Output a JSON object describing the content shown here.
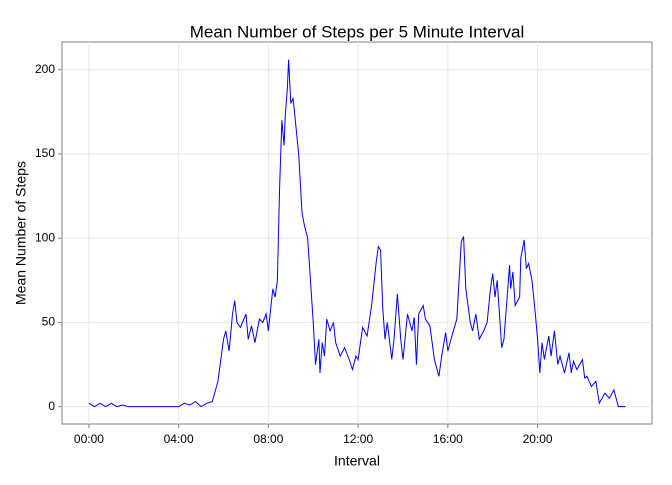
{
  "chart_data": {
    "type": "line",
    "title": "Mean Number of Steps per 5 Minute Interval",
    "x_label": "Interval",
    "y_label": "Mean Number of Steps",
    "x": [
      0,
      0.25,
      0.5,
      0.75,
      1,
      1.25,
      1.5,
      1.75,
      2,
      2.5,
      3,
      3.5,
      4,
      4.25,
      4.5,
      4.75,
      5,
      5.25,
      5.5,
      5.75,
      6.0,
      6.1,
      6.25,
      6.4,
      6.5,
      6.6,
      6.75,
      7.0,
      7.1,
      7.25,
      7.4,
      7.5,
      7.6,
      7.75,
      7.9,
      8.0,
      8.1,
      8.2,
      8.3,
      8.4,
      8.5,
      8.6,
      8.7,
      8.75,
      8.85,
      8.9,
      9.0,
      9.1,
      9.2,
      9.35,
      9.5,
      9.6,
      9.75,
      9.85,
      10.0,
      10.1,
      10.25,
      10.3,
      10.4,
      10.5,
      10.6,
      10.75,
      10.9,
      11.0,
      11.2,
      11.4,
      11.6,
      11.75,
      11.9,
      12.0,
      12.2,
      12.4,
      12.6,
      12.8,
      12.9,
      13.0,
      13.1,
      13.2,
      13.3,
      13.5,
      13.6,
      13.75,
      13.9,
      14.0,
      14.2,
      14.4,
      14.5,
      14.6,
      14.7,
      14.9,
      15.0,
      15.2,
      15.4,
      15.6,
      15.75,
      15.9,
      16.0,
      16.2,
      16.4,
      16.6,
      16.7,
      16.8,
      16.9,
      17.0,
      17.1,
      17.25,
      17.4,
      17.6,
      17.75,
      17.9,
      18.0,
      18.1,
      18.2,
      18.3,
      18.4,
      18.5,
      18.75,
      18.8,
      18.9,
      19.0,
      19.2,
      19.25,
      19.4,
      19.5,
      19.6,
      19.75,
      19.9,
      20.0,
      20.1,
      20.2,
      20.3,
      20.5,
      20.6,
      20.75,
      20.9,
      21.0,
      21.2,
      21.4,
      21.5,
      21.6,
      21.75,
      22.0,
      22.1,
      22.2,
      22.4,
      22.6,
      22.75,
      23.0,
      23.2,
      23.4,
      23.6,
      23.92
    ],
    "series": [
      {
        "name": "Mean Number of Steps",
        "color": "#0000ff",
        "values": [
          2,
          0,
          2,
          0,
          2,
          0,
          1,
          0,
          0,
          0,
          0,
          0,
          0,
          2,
          1,
          3,
          0,
          2,
          3,
          15,
          40,
          45,
          33,
          55,
          63,
          50,
          47,
          55,
          40,
          48,
          38,
          45,
          52,
          50,
          55,
          45,
          58,
          70,
          65,
          75,
          130,
          170,
          155,
          172,
          190,
          206,
          180,
          183,
          170,
          150,
          115,
          108,
          100,
          80,
          50,
          25,
          40,
          20,
          38,
          30,
          52,
          45,
          50,
          38,
          30,
          35,
          28,
          22,
          30,
          28,
          47,
          42,
          60,
          85,
          95,
          93,
          58,
          40,
          50,
          28,
          40,
          67,
          40,
          28,
          55,
          45,
          53,
          25,
          55,
          60,
          52,
          48,
          28,
          18,
          32,
          44,
          33,
          43,
          52,
          98,
          101,
          70,
          60,
          50,
          45,
          55,
          40,
          45,
          50,
          70,
          79,
          65,
          75,
          55,
          35,
          40,
          84,
          70,
          80,
          60,
          65,
          88,
          99,
          82,
          85,
          75,
          55,
          40,
          20,
          38,
          28,
          42,
          30,
          45,
          25,
          30,
          20,
          32,
          20,
          27,
          22,
          28,
          17,
          18,
          12,
          15,
          2,
          8,
          5,
          10,
          0,
          0
        ]
      }
    ],
    "xlim": [
      -1.2,
      25.1
    ],
    "ylim": [
      -10.3,
      216.5
    ],
    "xticks": [
      {
        "value": 0,
        "label": "00:00"
      },
      {
        "value": 4,
        "label": "04:00"
      },
      {
        "value": 8,
        "label": "08:00"
      },
      {
        "value": 12,
        "label": "12:00"
      },
      {
        "value": 16,
        "label": "16:00"
      },
      {
        "value": 20,
        "label": "20:00"
      }
    ],
    "yticks": [
      0,
      50,
      100,
      150,
      200
    ],
    "grid": true
  }
}
